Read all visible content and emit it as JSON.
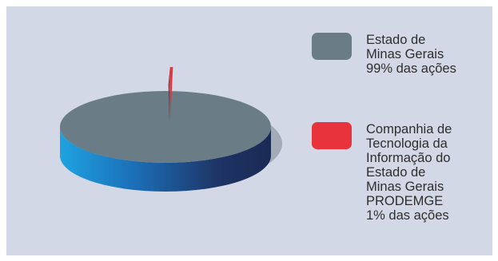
{
  "chart_data": {
    "type": "pie",
    "style": "3d",
    "series": [
      {
        "label": "Estado de\nMinas Gerais\n99% das ações",
        "value": 99,
        "color": "#6a7d87",
        "side_color": "#1f9ad8",
        "side_color_dark": "#1e3360"
      },
      {
        "label": "Companhia de\nTecnologia da\nInformação do\nEstado de\nMinas Gerais\nPRODEMGE\n1% das ações",
        "value": 1,
        "color": "#e8323c",
        "exploded": true
      }
    ],
    "legend_position": "right"
  },
  "colors": {
    "panel_background": "#d3d8e6",
    "shadow": "#a4abb7"
  }
}
